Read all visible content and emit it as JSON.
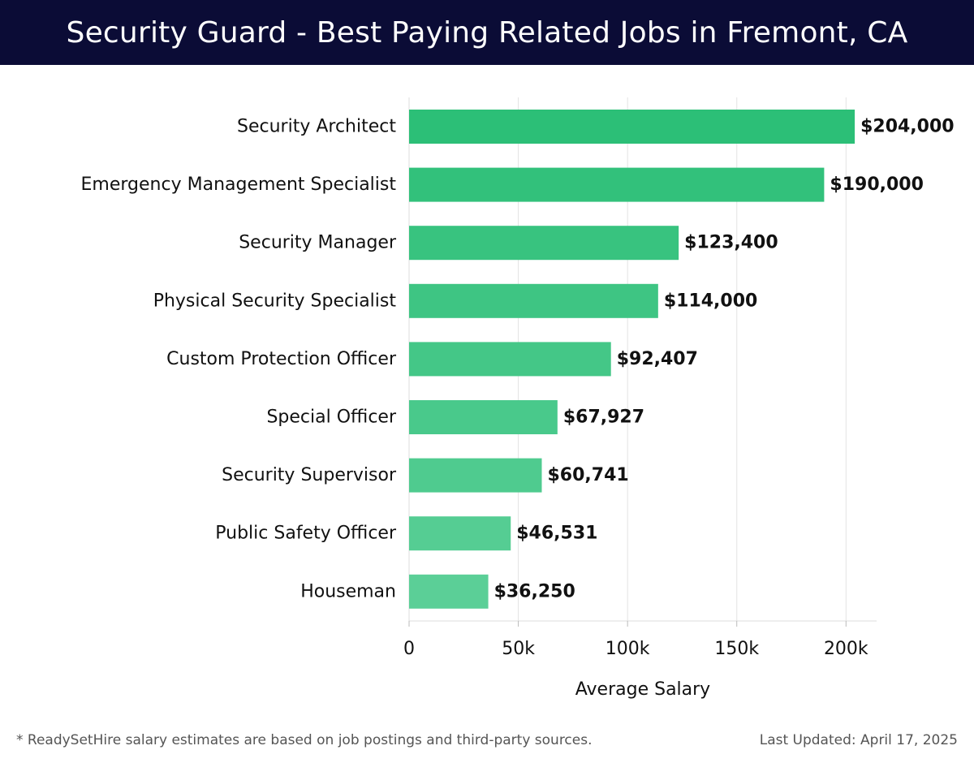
{
  "header": {
    "title": "Security Guard - Best Paying Related Jobs in Fremont, CA"
  },
  "chart_data": {
    "type": "bar",
    "orientation": "horizontal",
    "categories": [
      "Security Architect",
      "Emergency Management Specialist",
      "Security Manager",
      "Physical Security Specialist",
      "Custom Protection Officer",
      "Special Officer",
      "Security Supervisor",
      "Public Safety Officer",
      "Houseman"
    ],
    "values": [
      204000,
      190000,
      123400,
      114000,
      92407,
      67927,
      60741,
      46531,
      36250
    ],
    "value_labels": [
      "$204,000",
      "$190,000",
      "$123,400",
      "$114,000",
      "$92,407",
      "$67,927",
      "$60,741",
      "$46,531",
      "$36,250"
    ],
    "xlabel": "Average Salary",
    "ylabel": "",
    "xlim": [
      0,
      214000
    ],
    "x_ticks": [
      0,
      50000,
      100000,
      150000,
      200000
    ],
    "x_tick_labels": [
      "0",
      "50k",
      "100k",
      "150k",
      "200k"
    ],
    "grid": true,
    "bar_color_top": "#2cbf77",
    "bar_color_bottom": "#5bcf97"
  },
  "footer": {
    "note": "* ReadySetHire salary estimates are based on job postings and third-party sources.",
    "updated": "Last Updated: April 17, 2025"
  }
}
